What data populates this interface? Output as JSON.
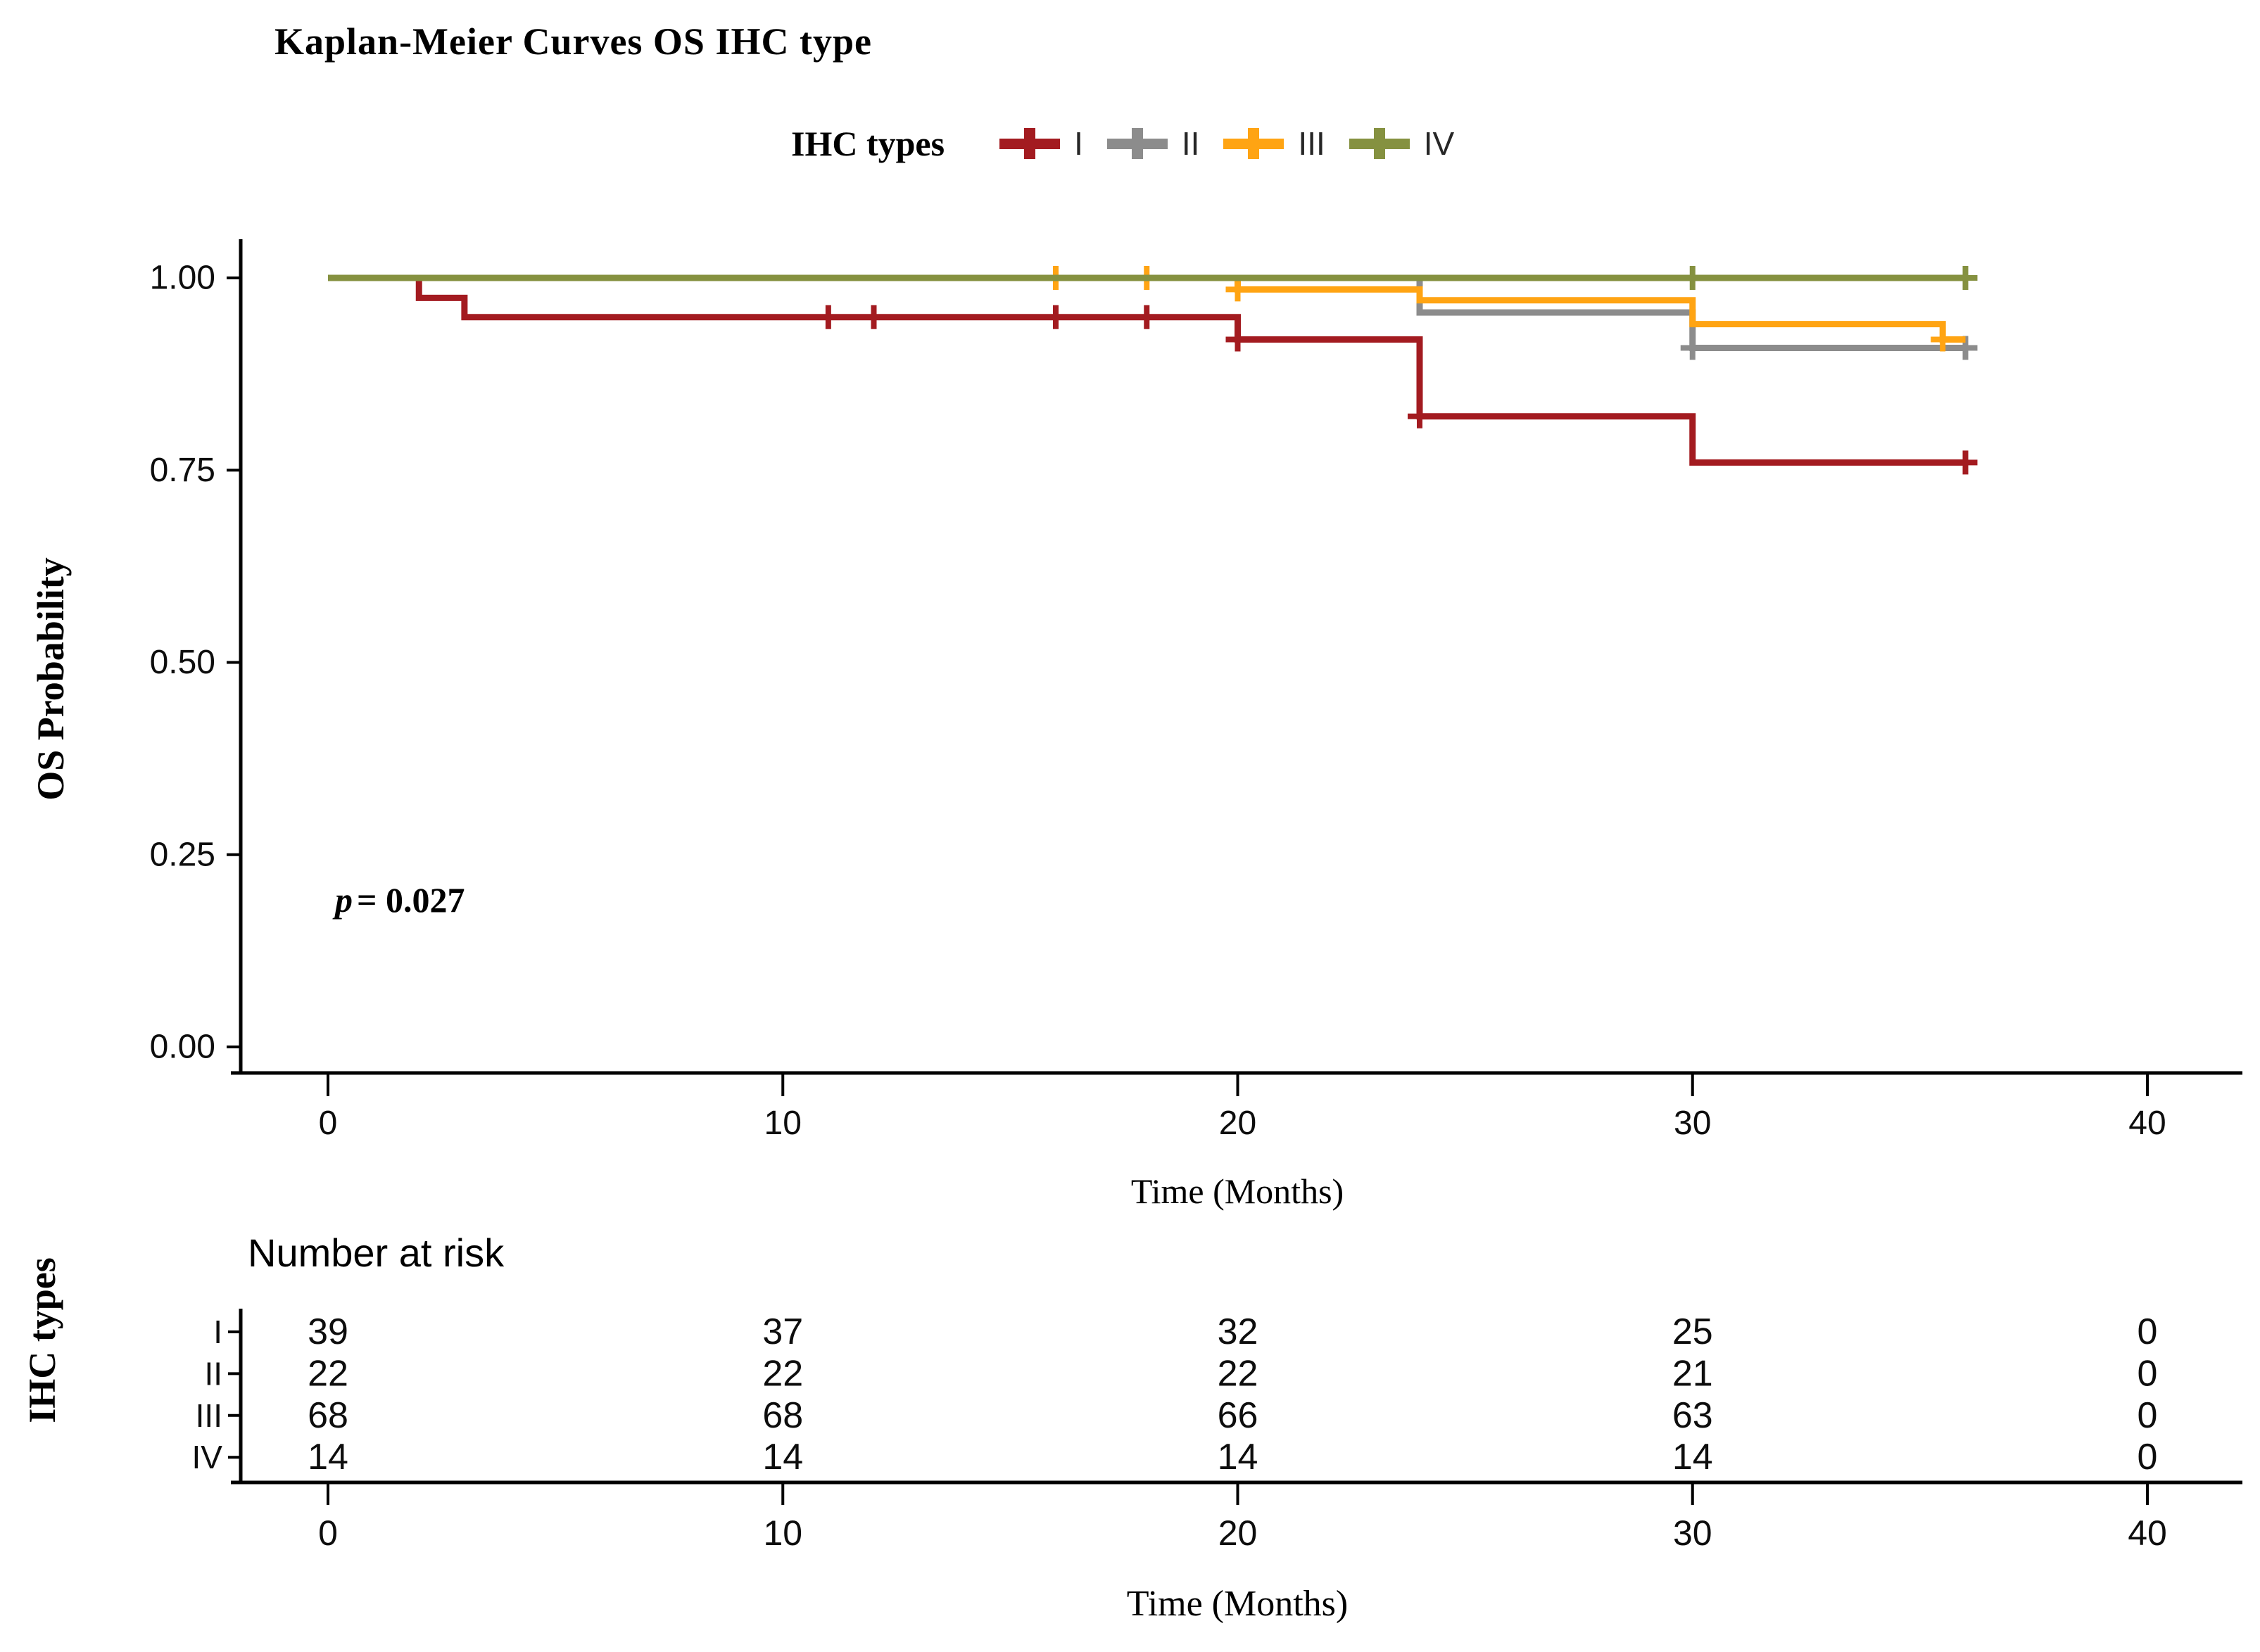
{
  "title": "Kaplan-Meier Curves OS IHC type",
  "legend": {
    "title": "IHC types",
    "items": [
      {
        "label": "I",
        "color": "#A31B20"
      },
      {
        "label": "II",
        "color": "#8C8C8C"
      },
      {
        "label": "III",
        "color": "#FFA413"
      },
      {
        "label": "IV",
        "color": "#859140"
      }
    ]
  },
  "annotation": {
    "p_italic": "p",
    "p_rest": "= 0.027"
  },
  "y_axis": {
    "title": "OS Probability",
    "ticks": [
      "1.00",
      "0.75",
      "0.50",
      "0.25",
      "0.00"
    ]
  },
  "x_axis": {
    "title": "Time (Months)",
    "ticks": [
      "0",
      "10",
      "20",
      "30",
      "40"
    ]
  },
  "risk_table": {
    "header": "Number at risk",
    "axis_title": "IHC types",
    "x_title": "Time (Months)",
    "x_ticks": [
      "0",
      "10",
      "20",
      "30",
      "40"
    ],
    "rows": [
      {
        "label": "I",
        "color": "#A31B20",
        "values": [
          "39",
          "37",
          "32",
          "25",
          "0"
        ]
      },
      {
        "label": "II",
        "color": "#8C8C8C",
        "values": [
          "22",
          "22",
          "22",
          "21",
          "0"
        ]
      },
      {
        "label": "III",
        "color": "#FFA413",
        "values": [
          "68",
          "68",
          "66",
          "63",
          "0"
        ]
      },
      {
        "label": "IV",
        "color": "#859140",
        "values": [
          "14",
          "14",
          "14",
          "14",
          "0"
        ]
      }
    ]
  },
  "chart_data": {
    "type": "line",
    "variant": "kaplan-meier-step",
    "title": "Kaplan-Meier Curves OS IHC type",
    "xlabel": "Time (Months)",
    "ylabel": "OS Probability",
    "xlim": [
      0,
      42
    ],
    "ylim": [
      0,
      1.0
    ],
    "x_ticks": [
      0,
      10,
      20,
      30,
      40
    ],
    "y_ticks": [
      1.0,
      0.75,
      0.5,
      0.25,
      0.0
    ],
    "grid": false,
    "legend_position": "top",
    "p_value": 0.027,
    "series": [
      {
        "name": "I",
        "color": "#A31B20",
        "steps": [
          [
            0,
            1.0
          ],
          [
            2,
            0.974
          ],
          [
            3,
            0.949
          ],
          [
            20,
            0.92
          ],
          [
            24,
            0.82
          ],
          [
            30,
            0.76
          ]
        ],
        "end_time": 36,
        "censors": [
          [
            11,
            0.949
          ],
          [
            12,
            0.949
          ],
          [
            16,
            0.949
          ],
          [
            18,
            0.949
          ],
          [
            20,
            0.92
          ],
          [
            24,
            0.82
          ],
          [
            36,
            0.76
          ]
        ]
      },
      {
        "name": "II",
        "color": "#8C8C8C",
        "steps": [
          [
            0,
            1.0
          ],
          [
            24,
            0.955
          ],
          [
            30,
            0.909
          ]
        ],
        "end_time": 36,
        "censors": [
          [
            30,
            0.909
          ],
          [
            36,
            0.909
          ]
        ]
      },
      {
        "name": "III",
        "color": "#FFA413",
        "steps": [
          [
            0,
            1.0
          ],
          [
            20,
            0.985
          ],
          [
            24,
            0.971
          ],
          [
            30,
            0.94
          ],
          [
            35.5,
            0.92
          ]
        ],
        "end_time": 36,
        "censors": [
          [
            16,
            1.0
          ],
          [
            18,
            1.0
          ],
          [
            20,
            0.985
          ],
          [
            35.5,
            0.92
          ]
        ]
      },
      {
        "name": "IV",
        "color": "#859140",
        "steps": [
          [
            0,
            1.0
          ]
        ],
        "end_time": 36,
        "censors": [
          [
            30,
            1.0
          ],
          [
            36,
            1.0
          ]
        ]
      }
    ],
    "number_at_risk": {
      "times": [
        0,
        10,
        20,
        30,
        40
      ],
      "I": [
        39,
        37,
        32,
        25,
        0
      ],
      "II": [
        22,
        22,
        22,
        21,
        0
      ],
      "III": [
        68,
        68,
        66,
        63,
        0
      ],
      "IV": [
        14,
        14,
        14,
        14,
        0
      ]
    }
  }
}
